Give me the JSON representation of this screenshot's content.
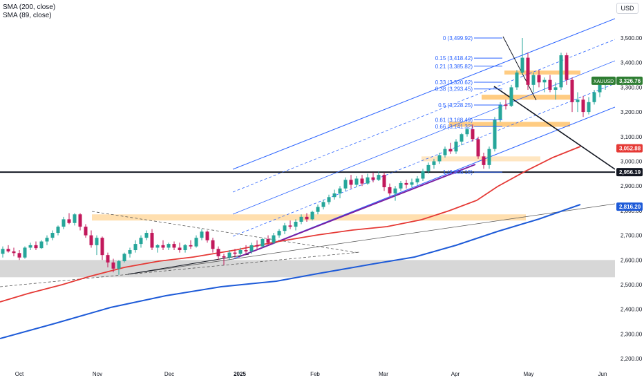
{
  "legend": {
    "sma200": "SMA (200, close)",
    "sma89": "SMA (89, close)"
  },
  "currency": "USD",
  "colors": {
    "up": "#26a69a",
    "down": "#c2185b",
    "sma89": "#e53935",
    "sma200": "#1e5bd8",
    "channel": "#2962ff",
    "fib": "#2962ff",
    "zone_orange": "#ffb74d",
    "zone_gray": "#bdbdbd",
    "wedge_line": "#7b1fa2",
    "support_line": "#000000",
    "last_price": "#2e7d32",
    "sma89_tag": "#e53935",
    "sma200_tag": "#1e5bd8"
  },
  "chart_data": {
    "type": "candlestick",
    "ylim": [
      2150,
      3600
    ],
    "y_ticks": [
      "2,200.00",
      "2,300.00",
      "2,400.00",
      "2,500.00",
      "2,600.00",
      "2,700.00",
      "2,800.00",
      "2,900.00",
      "3,000.00",
      "3,100.00",
      "3,200.00",
      "3,300.00",
      "3,400.00",
      "3,500.00"
    ],
    "x_ticks": [
      "Oct",
      "Nov",
      "Dec",
      "2025",
      "Feb",
      "Mar",
      "Apr",
      "May",
      "Jun"
    ],
    "price_tags": [
      {
        "label": "XAUUSD",
        "value": "3,326.76",
        "y": 3326.76,
        "kind": "last"
      },
      {
        "label": "",
        "value": "3,052.88",
        "y": 3052.88,
        "kind": "sma89"
      },
      {
        "label": "",
        "value": "2,956.19",
        "y": 2956.19,
        "kind": "line"
      },
      {
        "label": "",
        "value": "2,816.20",
        "y": 2816.2,
        "kind": "sma200"
      }
    ],
    "fib_levels": [
      {
        "label": "0 (3,499.92)",
        "value": 3499.92
      },
      {
        "label": "0.15 (3,418.42)",
        "value": 3418.42
      },
      {
        "label": "0.21 (3,385.82)",
        "value": 3385.82
      },
      {
        "label": "0.33 (3,320.62)",
        "value": 3320.62
      },
      {
        "label": "0.38 (3,293.45)",
        "value": 3293.45
      },
      {
        "label": "0.5 (3,228.25)",
        "value": 3228.25
      },
      {
        "label": "0.61 (3,168.49)",
        "value": 3168.49
      },
      {
        "label": "0.66 (3,141.32)",
        "value": 3141.32
      },
      {
        "label": "1 (2,956.19)",
        "value": 2956.19
      }
    ],
    "candles": [
      [
        2625,
        2655,
        2610,
        2645
      ],
      [
        2645,
        2660,
        2630,
        2635
      ],
      [
        2635,
        2650,
        2615,
        2628
      ],
      [
        2628,
        2640,
        2600,
        2610
      ],
      [
        2610,
        2655,
        2605,
        2650
      ],
      [
        2650,
        2670,
        2640,
        2660
      ],
      [
        2660,
        2675,
        2640,
        2648
      ],
      [
        2648,
        2680,
        2645,
        2675
      ],
      [
        2675,
        2700,
        2660,
        2690
      ],
      [
        2690,
        2720,
        2680,
        2710
      ],
      [
        2710,
        2740,
        2700,
        2735
      ],
      [
        2735,
        2775,
        2725,
        2765
      ],
      [
        2765,
        2790,
        2745,
        2750
      ],
      [
        2750,
        2790,
        2740,
        2785
      ],
      [
        2785,
        2790,
        2720,
        2735
      ],
      [
        2735,
        2745,
        2690,
        2700
      ],
      [
        2700,
        2720,
        2650,
        2660
      ],
      [
        2660,
        2700,
        2620,
        2690
      ],
      [
        2690,
        2695,
        2600,
        2620
      ],
      [
        2620,
        2630,
        2570,
        2590
      ],
      [
        2590,
        2605,
        2550,
        2565
      ],
      [
        2565,
        2600,
        2540,
        2595
      ],
      [
        2595,
        2630,
        2590,
        2625
      ],
      [
        2625,
        2650,
        2610,
        2640
      ],
      [
        2640,
        2680,
        2630,
        2665
      ],
      [
        2665,
        2700,
        2650,
        2690
      ],
      [
        2690,
        2720,
        2680,
        2710
      ],
      [
        2710,
        2725,
        2640,
        2650
      ],
      [
        2650,
        2665,
        2630,
        2660
      ],
      [
        2660,
        2680,
        2640,
        2650
      ],
      [
        2650,
        2670,
        2640,
        2665
      ],
      [
        2665,
        2675,
        2640,
        2650
      ],
      [
        2650,
        2670,
        2630,
        2640
      ],
      [
        2640,
        2665,
        2630,
        2660
      ],
      [
        2660,
        2680,
        2645,
        2655
      ],
      [
        2655,
        2700,
        2650,
        2690
      ],
      [
        2690,
        2725,
        2680,
        2715
      ],
      [
        2715,
        2720,
        2670,
        2680
      ],
      [
        2680,
        2690,
        2630,
        2645
      ],
      [
        2645,
        2655,
        2600,
        2615
      ],
      [
        2615,
        2625,
        2580,
        2610
      ],
      [
        2610,
        2640,
        2600,
        2630
      ],
      [
        2630,
        2645,
        2610,
        2625
      ],
      [
        2625,
        2650,
        2615,
        2640
      ],
      [
        2640,
        2660,
        2625,
        2635
      ],
      [
        2635,
        2670,
        2625,
        2660
      ],
      [
        2660,
        2680,
        2640,
        2655
      ],
      [
        2655,
        2690,
        2650,
        2685
      ],
      [
        2685,
        2700,
        2660,
        2670
      ],
      [
        2670,
        2710,
        2665,
        2700
      ],
      [
        2700,
        2725,
        2690,
        2718
      ],
      [
        2718,
        2750,
        2705,
        2740
      ],
      [
        2740,
        2760,
        2725,
        2735
      ],
      [
        2735,
        2765,
        2720,
        2755
      ],
      [
        2755,
        2785,
        2745,
        2775
      ],
      [
        2775,
        2790,
        2755,
        2765
      ],
      [
        2765,
        2800,
        2760,
        2795
      ],
      [
        2795,
        2825,
        2785,
        2815
      ],
      [
        2815,
        2845,
        2805,
        2835
      ],
      [
        2835,
        2865,
        2825,
        2855
      ],
      [
        2855,
        2885,
        2845,
        2870
      ],
      [
        2870,
        2900,
        2850,
        2890
      ],
      [
        2890,
        2935,
        2880,
        2925
      ],
      [
        2925,
        2945,
        2890,
        2905
      ],
      [
        2905,
        2940,
        2895,
        2930
      ],
      [
        2930,
        2945,
        2900,
        2910
      ],
      [
        2910,
        2950,
        2905,
        2935
      ],
      [
        2935,
        2955,
        2915,
        2925
      ],
      [
        2925,
        2960,
        2920,
        2945
      ],
      [
        2945,
        2955,
        2880,
        2895
      ],
      [
        2895,
        2910,
        2860,
        2870
      ],
      [
        2870,
        2900,
        2840,
        2890
      ],
      [
        2890,
        2920,
        2880,
        2912
      ],
      [
        2912,
        2925,
        2890,
        2905
      ],
      [
        2905,
        2930,
        2895,
        2915
      ],
      [
        2915,
        2940,
        2905,
        2930
      ],
      [
        2930,
        2970,
        2920,
        2960
      ],
      [
        2960,
        2995,
        2950,
        2985
      ],
      [
        2985,
        3010,
        2970,
        3000
      ],
      [
        3000,
        3035,
        2990,
        3025
      ],
      [
        3025,
        3060,
        3015,
        3050
      ],
      [
        3050,
        3075,
        3030,
        3040
      ],
      [
        3040,
        3090,
        3030,
        3080
      ],
      [
        3080,
        3115,
        3065,
        3110
      ],
      [
        3110,
        3140,
        3100,
        3130
      ],
      [
        3130,
        3150,
        3080,
        3090
      ],
      [
        3090,
        3100,
        3010,
        3020
      ],
      [
        3020,
        3035,
        2970,
        2985
      ],
      [
        2985,
        3060,
        2970,
        3050
      ],
      [
        3050,
        3180,
        3040,
        3170
      ],
      [
        3170,
        3240,
        3160,
        3230
      ],
      [
        3230,
        3250,
        3210,
        3225
      ],
      [
        3225,
        3310,
        3220,
        3300
      ],
      [
        3300,
        3370,
        3290,
        3360
      ],
      [
        3360,
        3500,
        3350,
        3420
      ],
      [
        3420,
        3440,
        3290,
        3310
      ],
      [
        3310,
        3360,
        3280,
        3350
      ],
      [
        3350,
        3370,
        3300,
        3320
      ],
      [
        3320,
        3340,
        3280,
        3330
      ],
      [
        3330,
        3350,
        3280,
        3290
      ],
      [
        3290,
        3320,
        3250,
        3300
      ],
      [
        3300,
        3440,
        3290,
        3430
      ],
      [
        3430,
        3440,
        3310,
        3330
      ],
      [
        3330,
        3340,
        3200,
        3240
      ],
      [
        3240,
        3280,
        3200,
        3250
      ],
      [
        3250,
        3265,
        3180,
        3200
      ],
      [
        3200,
        3260,
        3190,
        3240
      ],
      [
        3240,
        3290,
        3230,
        3280
      ],
      [
        3280,
        3320,
        3260,
        3310
      ],
      [
        3310,
        3335,
        3290,
        3326.76
      ]
    ]
  }
}
